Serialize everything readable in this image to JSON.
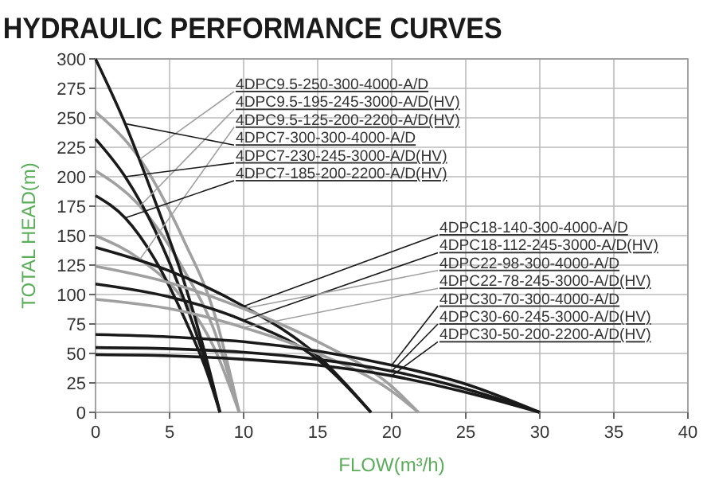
{
  "chart_data": {
    "type": "line",
    "title": "HYDRAULIC PERFORMANCE CURVES",
    "xlabel": "FLOW(m³/h)",
    "ylabel": "TOTAL HEAD(m)",
    "xlim": [
      0,
      40
    ],
    "ylim": [
      0,
      300
    ],
    "xticks": [
      0,
      5,
      10,
      15,
      20,
      25,
      30,
      35,
      40
    ],
    "yticks": [
      0,
      25,
      50,
      75,
      100,
      125,
      150,
      175,
      200,
      225,
      250,
      275,
      300
    ],
    "grid": true,
    "legend": false,
    "marker": "none",
    "line_style": "solid",
    "series": [
      {
        "name": "4DPC9.5-250-300-4000-A/D",
        "color": "#a0a0a0",
        "x": [
          0,
          3,
          6,
          8,
          9.7
        ],
        "values": [
          255,
          215,
          145,
          85,
          0
        ]
      },
      {
        "name": "4DPC9.5-195-245-3000-A/D(HV)",
        "color": "#a0a0a0",
        "x": [
          0,
          3,
          6,
          8,
          9.7
        ],
        "values": [
          205,
          175,
          120,
          70,
          0
        ]
      },
      {
        "name": "4DPC9.5-125-200-2200-A/D(HV)",
        "color": "#a0a0a0",
        "x": [
          0,
          3,
          6,
          8,
          9.7
        ],
        "values": [
          150,
          130,
          95,
          55,
          0
        ]
      },
      {
        "name": "4DPC7-300-300-4000-A/D",
        "color": "#1a1a1a",
        "x": [
          0,
          2,
          4,
          6,
          7.5,
          8.4
        ],
        "values": [
          300,
          245,
          180,
          110,
          45,
          0
        ]
      },
      {
        "name": "4DPC7-230-245-3000-A/D(HV)",
        "color": "#1a1a1a",
        "x": [
          0,
          2,
          4,
          6,
          7.5,
          8.4
        ],
        "values": [
          232,
          200,
          155,
          95,
          40,
          0
        ]
      },
      {
        "name": "4DPC7-185-200-2200-A/D(HV)",
        "color": "#1a1a1a",
        "x": [
          0,
          2,
          4,
          6,
          7.5,
          8.4
        ],
        "values": [
          184,
          165,
          130,
          80,
          35,
          0
        ]
      },
      {
        "name": "4DPC18-140-300-4000-A/D",
        "color": "#1a1a1a",
        "x": [
          0,
          5,
          10,
          15,
          18.6
        ],
        "values": [
          140,
          120,
          90,
          48,
          0
        ]
      },
      {
        "name": "4DPC18-112-245-3000-A/D(HV)",
        "color": "#1a1a1a",
        "x": [
          0,
          5,
          10,
          15,
          18.6
        ],
        "values": [
          109,
          98,
          78,
          45,
          0
        ]
      },
      {
        "name": "4DPC22-98-300-4000-A/D",
        "color": "#a0a0a0",
        "x": [
          0,
          5,
          10,
          15,
          20,
          21.8
        ],
        "values": [
          124,
          110,
          88,
          60,
          22,
          0
        ]
      },
      {
        "name": "4DPC22-78-245-3000-A/D(HV)",
        "color": "#a0a0a0",
        "x": [
          0,
          5,
          10,
          15,
          20,
          21.8
        ],
        "values": [
          96,
          88,
          72,
          50,
          18,
          0
        ]
      },
      {
        "name": "4DPC30-70-300-4000-A/D",
        "color": "#1a1a1a",
        "x": [
          0,
          5,
          10,
          15,
          20,
          25,
          30
        ],
        "values": [
          66,
          64,
          60,
          52,
          40,
          24,
          0
        ]
      },
      {
        "name": "4DPC30-60-245-3000-A/D(HV)",
        "color": "#1a1a1a",
        "x": [
          0,
          5,
          10,
          15,
          20,
          25,
          30
        ],
        "values": [
          55,
          54,
          51,
          45,
          35,
          20,
          0
        ]
      },
      {
        "name": "4DPC30-50-200-2200-A/D(HV)",
        "color": "#1a1a1a",
        "x": [
          0,
          5,
          10,
          15,
          20,
          25,
          30
        ],
        "values": [
          49,
          48,
          45,
          40,
          31,
          17,
          0
        ]
      }
    ]
  }
}
